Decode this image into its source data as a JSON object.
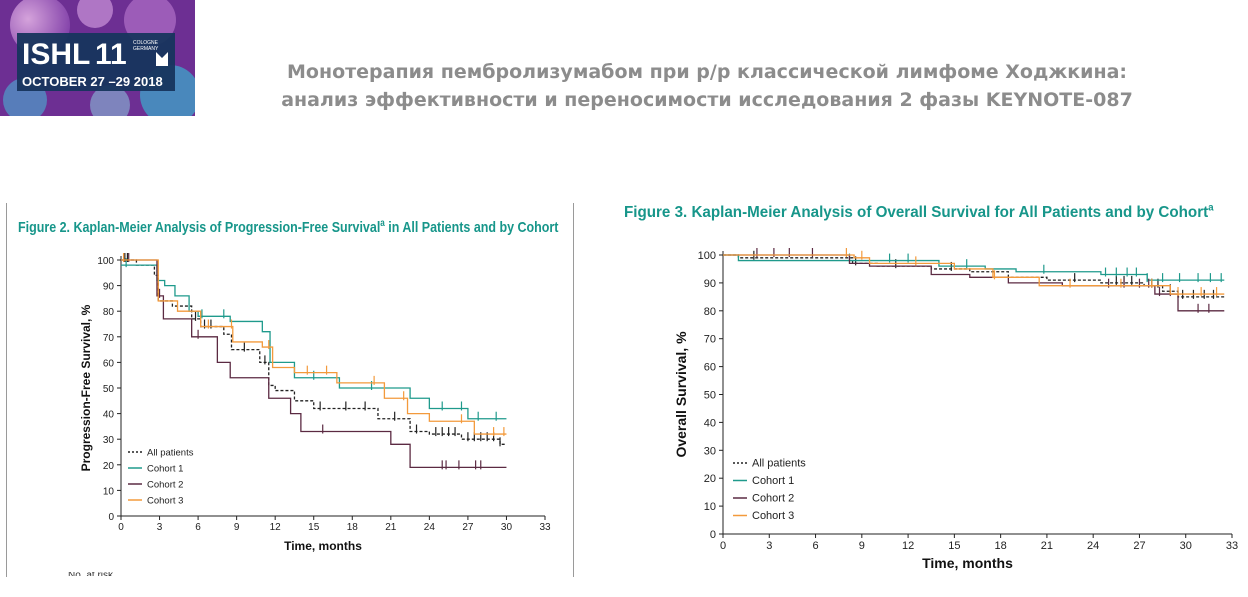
{
  "header": {
    "logo": {
      "text": "ISHL",
      "number": "11",
      "location_line1": "COLOGNE",
      "location_line2": "GERMANY",
      "dates": "OCTOBER 27 –29 2018"
    },
    "title_line1": "Монотерапия пембролизумабом при р/р классической лимфоме Ходжкина:",
    "title_line2": "анализ эффективности и переносимости исследования 2 фазы KEYNOTE-087"
  },
  "colors": {
    "title_teal": "#17968a",
    "all_patients": "#222222",
    "cohort1": "#1f9a8c",
    "cohort2": "#5b2a42",
    "cohort3": "#f39a3c",
    "header_grey": "#8c8c8c"
  },
  "footnote_cut": "No. at risk",
  "chart_data": [
    {
      "type": "line",
      "title": "Figure 2. Kaplan-Meier Analysis of Progression-Free Survival",
      "title_sup": "a",
      "title_tail": " in All Patients and by Cohort",
      "xlabel": "Time, months",
      "ylabel": "Progression-Free Survival, %",
      "xlim": [
        0,
        33
      ],
      "ylim": [
        0,
        100
      ],
      "xticks": [
        0,
        3,
        6,
        9,
        12,
        15,
        18,
        21,
        24,
        27,
        30,
        33
      ],
      "yticks": [
        0,
        10,
        20,
        30,
        40,
        50,
        60,
        70,
        80,
        90,
        100
      ],
      "legend_position": "bottom-left",
      "series": [
        {
          "name": "All patients",
          "style": "dashed",
          "x": [
            0,
            1.2,
            2.6,
            2.9,
            4.0,
            5.5,
            6.2,
            8.0,
            8.6,
            10.8,
            11.5,
            12.0,
            13.5,
            15.0,
            17.0,
            20.0,
            22.0,
            22.5,
            24.0,
            26.5,
            29.5,
            30
          ],
          "y": [
            100,
            98,
            94,
            84,
            82,
            77,
            74,
            71,
            65,
            60,
            51,
            49,
            45,
            42,
            42,
            38,
            38,
            33,
            32,
            30,
            28,
            28
          ],
          "censor_x": [
            0.3,
            0.5,
            5.8,
            6.5,
            7.0,
            9.6,
            11.2,
            15.5,
            17.5,
            19.0,
            21.3,
            23.0,
            24.5,
            25.0,
            25.5,
            26.0,
            27.0,
            27.5,
            28.0,
            28.5,
            29.0,
            29.5
          ]
        },
        {
          "name": "Cohort 1",
          "style": "solid",
          "x": [
            0,
            2.8,
            3.4,
            4.2,
            5.3,
            6.0,
            8.5,
            11.0,
            11.6,
            13.5,
            17.0,
            22.5,
            24.0,
            27.0,
            30
          ],
          "y": [
            98,
            92,
            90,
            86,
            80,
            78,
            76,
            72,
            60,
            54,
            50,
            46,
            42,
            38,
            38
          ],
          "censor_x": [
            0.4,
            6.3,
            8.0,
            15.0,
            19.5,
            25.0,
            26.5,
            27.8,
            29.2
          ]
        },
        {
          "name": "Cohort 2",
          "style": "solid",
          "x": [
            0,
            2.8,
            3.3,
            5.5,
            7.5,
            8.5,
            11.5,
            13.2,
            14.0,
            21.0,
            22.5,
            30
          ],
          "y": [
            100,
            86,
            77,
            70,
            60,
            54,
            46,
            40,
            33,
            28,
            19,
            19
          ],
          "censor_x": [
            0.6,
            3.0,
            6.0,
            15.7,
            25.0,
            25.3,
            26.3,
            27.6,
            28.0
          ]
        },
        {
          "name": "Cohort 3",
          "style": "solid",
          "x": [
            0,
            2.9,
            4.4,
            6.2,
            8.7,
            11.0,
            11.8,
            13.5,
            16.8,
            20.5,
            22.3,
            24.0,
            27.5,
            30
          ],
          "y": [
            100,
            84,
            80,
            74,
            68,
            66,
            58,
            56,
            52,
            46,
            40,
            37,
            32,
            32
          ],
          "censor_x": [
            0.2,
            6.8,
            8.6,
            11.5,
            14.5,
            16.0,
            19.7,
            22.0,
            26.5,
            29.0,
            29.8
          ]
        }
      ]
    },
    {
      "type": "line",
      "title": "Figure 3. Kaplan-Meier Analysis of Overall Survival for All Patients and by Cohort",
      "title_sup": "a",
      "title_tail": "",
      "xlabel": "Time, months",
      "ylabel": "Overall Survival, %",
      "xlim": [
        0,
        33
      ],
      "ylim": [
        0,
        100
      ],
      "xticks": [
        0,
        3,
        6,
        9,
        12,
        15,
        18,
        21,
        24,
        27,
        30,
        33
      ],
      "yticks": [
        0,
        10,
        20,
        30,
        40,
        50,
        60,
        70,
        80,
        90,
        100
      ],
      "legend_position": "bottom-left",
      "series": [
        {
          "name": "All patients",
          "style": "dashed",
          "x": [
            0,
            1.0,
            8.0,
            8.4,
            10.0,
            13.5,
            16.0,
            18.5,
            21.0,
            24.5,
            27.3,
            28.5,
            29.5,
            32.5
          ],
          "y": [
            100,
            99,
            99,
            97,
            96,
            95,
            94,
            92,
            91,
            90,
            89,
            87,
            85,
            85
          ],
          "censor_x": [
            2.0,
            8.6,
            11.2,
            14.8,
            22.8,
            25.5,
            26.0,
            26.5,
            27.8,
            28.2,
            29.0,
            29.8,
            30.5,
            31.2,
            31.8
          ]
        },
        {
          "name": "Cohort 1",
          "style": "solid",
          "x": [
            0,
            1.0,
            8.6,
            14.0,
            17.0,
            19.0,
            24.5,
            27.5,
            32.5
          ],
          "y": [
            100,
            98,
            98,
            96,
            95,
            94,
            93,
            91,
            91
          ],
          "censor_x": [
            8.2,
            10.8,
            12.0,
            15.8,
            20.8,
            24.8,
            25.5,
            26.2,
            26.8,
            27.5,
            28.5,
            29.6,
            30.8,
            31.6,
            32.3
          ]
        },
        {
          "name": "Cohort 2",
          "style": "solid",
          "x": [
            0,
            8.2,
            9.5,
            13.5,
            16.0,
            18.5,
            22.0,
            26.8,
            28.0,
            29.5,
            32.5
          ],
          "y": [
            100,
            97,
            96,
            93,
            92,
            90,
            89,
            89,
            86,
            80,
            80
          ],
          "censor_x": [
            2.2,
            3.3,
            4.3,
            5.8,
            25.0,
            26.0,
            27.0,
            27.6,
            28.3,
            29.0,
            30.8,
            31.5
          ]
        },
        {
          "name": "Cohort 3",
          "style": "solid",
          "x": [
            0,
            8.5,
            9.5,
            15.0,
            17.5,
            20.5,
            26.0,
            29.0,
            30.5,
            32.5
          ],
          "y": [
            100,
            99,
            97,
            95,
            92,
            89,
            89,
            86,
            86,
            86
          ],
          "censor_x": [
            8.0,
            9.0,
            12.5,
            17.6,
            22.5,
            25.8,
            27.8,
            29.5,
            31.0,
            32.0
          ]
        }
      ]
    }
  ]
}
